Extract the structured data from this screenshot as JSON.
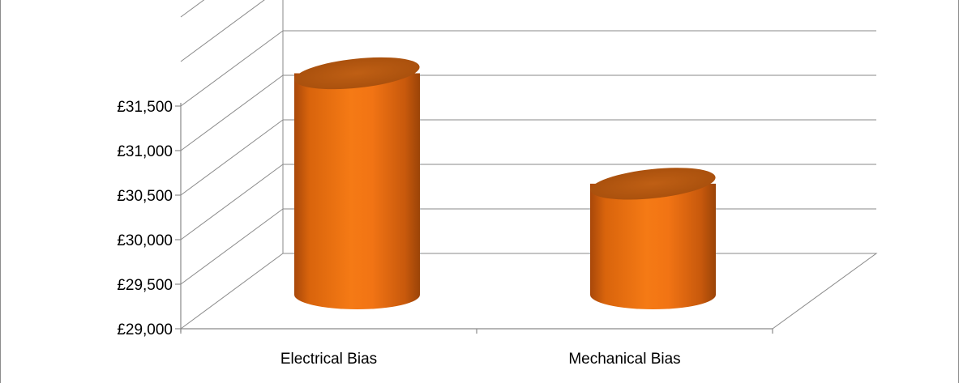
{
  "chart_data": {
    "type": "bar",
    "style": "3d-cylinder",
    "categories": [
      "Electrical Bias",
      "Mechanical Bias"
    ],
    "values": [
      31550,
      30310
    ],
    "ylim": [
      29000,
      31500
    ],
    "ytick_values": [
      29000,
      29500,
      30000,
      30500,
      31000,
      31500
    ],
    "ytick_labels": [
      "£29,000",
      "£29,500",
      "£30,000",
      "£30,500",
      "£31,000",
      "£31,500"
    ],
    "title": "",
    "xlabel": "",
    "ylabel": "",
    "grid": true,
    "legend": "none",
    "colors": {
      "bar": "#ed7d31",
      "bar_light": "#f28a2a",
      "bar_dark": "#b4520c",
      "bar_top": "#b85a12",
      "grid": "#8a8a8a"
    }
  }
}
